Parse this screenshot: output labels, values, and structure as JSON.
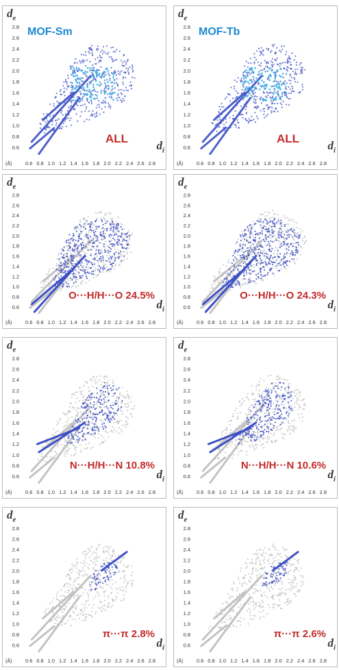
{
  "chart_data": [
    {
      "type": "scatter",
      "title": "MOF-Sm",
      "ylabel_main": "d",
      "ylabel_sub": "e",
      "xlabel_main": "d",
      "xlabel_sub": "i",
      "unit": "(Å)",
      "x_ticks": [
        "0.6",
        "0.8",
        "1.0",
        "1.2",
        "1.4",
        "1.6",
        "1.8",
        "2.0",
        "2.2",
        "2.4",
        "2.6",
        "2.8"
      ],
      "y_ticks": [
        "0.6",
        "0.8",
        "1.0",
        "1.2",
        "1.4",
        "1.6",
        "1.8",
        "2.0",
        "2.2",
        "2.4",
        "2.6",
        "2.8"
      ],
      "xlim": [
        0.5,
        2.9
      ],
      "ylim": [
        0.45,
        2.9
      ],
      "contact": "ALL",
      "percent": null,
      "highlight": "all",
      "colors": {
        "highlight": "#3d4fc4",
        "core": "#2fa8e0",
        "background": "#bdbdbd"
      }
    },
    {
      "type": "scatter",
      "title": "MOF-Tb",
      "ylabel_main": "d",
      "ylabel_sub": "e",
      "xlabel_main": "d",
      "xlabel_sub": "i",
      "unit": "(Å)",
      "x_ticks": [
        "0.6",
        "0.8",
        "1.0",
        "1.2",
        "1.4",
        "1.6",
        "1.8",
        "2.0",
        "2.2",
        "2.4",
        "2.6",
        "2.8"
      ],
      "y_ticks": [
        "0.6",
        "0.8",
        "1.0",
        "1.2",
        "1.4",
        "1.6",
        "1.8",
        "2.0",
        "2.2",
        "2.4",
        "2.6",
        "2.8"
      ],
      "xlim": [
        0.5,
        2.9
      ],
      "ylim": [
        0.45,
        2.9
      ],
      "contact": "ALL",
      "percent": null,
      "highlight": "all",
      "colors": {
        "highlight": "#3d4fc4",
        "core": "#2fa8e0",
        "background": "#bdbdbd"
      }
    },
    {
      "type": "scatter",
      "title": "",
      "ylabel_main": "d",
      "ylabel_sub": "e",
      "xlabel_main": "d",
      "xlabel_sub": "i",
      "unit": "(Å)",
      "x_ticks": [
        "0.6",
        "0.8",
        "1.0",
        "1.2",
        "1.4",
        "1.6",
        "1.8",
        "2.0",
        "2.2",
        "2.4",
        "2.6",
        "2.8"
      ],
      "y_ticks": [
        "0.6",
        "0.8",
        "1.0",
        "1.2",
        "1.4",
        "1.6",
        "1.8",
        "2.0",
        "2.2",
        "2.4",
        "2.6",
        "2.8"
      ],
      "xlim": [
        0.5,
        2.9
      ],
      "ylim": [
        0.45,
        2.9
      ],
      "contact": "O···H/H···O",
      "percent": "24.5%",
      "highlight": "oh",
      "colors": {
        "highlight": "#3d4fc4",
        "core": "#2fa8e0",
        "background": "#bdbdbd"
      }
    },
    {
      "type": "scatter",
      "title": "",
      "ylabel_main": "d",
      "ylabel_sub": "e",
      "xlabel_main": "d",
      "xlabel_sub": "i",
      "unit": "(Å)",
      "x_ticks": [
        "0.6",
        "0.8",
        "1.0",
        "1.2",
        "1.4",
        "1.6",
        "1.8",
        "2.0",
        "2.2",
        "2.4",
        "2.6",
        "2.8"
      ],
      "y_ticks": [
        "0.6",
        "0.8",
        "1.0",
        "1.2",
        "1.4",
        "1.6",
        "1.8",
        "2.0",
        "2.2",
        "2.4",
        "2.6",
        "2.8"
      ],
      "xlim": [
        0.5,
        2.9
      ],
      "ylim": [
        0.45,
        2.9
      ],
      "contact": "O···H/H···O",
      "percent": "24.3%",
      "highlight": "oh",
      "colors": {
        "highlight": "#3d4fc4",
        "core": "#2fa8e0",
        "background": "#bdbdbd"
      }
    },
    {
      "type": "scatter",
      "title": "",
      "ylabel_main": "d",
      "ylabel_sub": "e",
      "xlabel_main": "d",
      "xlabel_sub": "i",
      "unit": "(Å)",
      "x_ticks": [
        "0.6",
        "0.8",
        "1.0",
        "1.2",
        "1.4",
        "1.6",
        "1.8",
        "2.0",
        "2.2",
        "2.4",
        "2.6",
        "2.8"
      ],
      "y_ticks": [
        "0.6",
        "0.8",
        "1.0",
        "1.2",
        "1.4",
        "1.6",
        "1.8",
        "2.0",
        "2.2",
        "2.4",
        "2.6",
        "2.8"
      ],
      "xlim": [
        0.5,
        2.9
      ],
      "ylim": [
        0.45,
        2.9
      ],
      "contact": "N···H/H···N",
      "percent": "10.8%",
      "highlight": "nh",
      "colors": {
        "highlight": "#3d4fc4",
        "core": "#2fa8e0",
        "background": "#bdbdbd"
      }
    },
    {
      "type": "scatter",
      "title": "",
      "ylabel_main": "d",
      "ylabel_sub": "e",
      "xlabel_main": "d",
      "xlabel_sub": "i",
      "unit": "(Å)",
      "x_ticks": [
        "0.6",
        "0.8",
        "1.0",
        "1.2",
        "1.4",
        "1.6",
        "1.8",
        "2.0",
        "2.2",
        "2.4",
        "2.6",
        "2.8"
      ],
      "y_ticks": [
        "0.6",
        "0.8",
        "1.0",
        "1.2",
        "1.4",
        "1.6",
        "1.8",
        "2.0",
        "2.2",
        "2.4",
        "2.6",
        "2.8"
      ],
      "xlim": [
        0.5,
        2.9
      ],
      "ylim": [
        0.45,
        2.9
      ],
      "contact": "N···H/H···N",
      "percent": "10.6%",
      "highlight": "nh",
      "colors": {
        "highlight": "#3d4fc4",
        "core": "#2fa8e0",
        "background": "#bdbdbd"
      }
    },
    {
      "type": "scatter",
      "title": "",
      "ylabel_main": "d",
      "ylabel_sub": "e",
      "xlabel_main": "d",
      "xlabel_sub": "i",
      "unit": "(Å)",
      "x_ticks": [
        "0.6",
        "0.8",
        "1.0",
        "1.2",
        "1.4",
        "1.6",
        "1.8",
        "2.0",
        "2.2",
        "2.4",
        "2.6",
        "2.8"
      ],
      "y_ticks": [
        "0.6",
        "0.8",
        "1.0",
        "1.2",
        "1.4",
        "1.6",
        "1.8",
        "2.0",
        "2.2",
        "2.4",
        "2.6",
        "2.8"
      ],
      "xlim": [
        0.5,
        2.9
      ],
      "ylim": [
        0.45,
        2.9
      ],
      "contact": "π···π",
      "percent": "2.8%",
      "highlight": "pp",
      "colors": {
        "highlight": "#3d4fc4",
        "core": "#2fa8e0",
        "background": "#bdbdbd"
      }
    },
    {
      "type": "scatter",
      "title": "",
      "ylabel_main": "d",
      "ylabel_sub": "e",
      "xlabel_main": "d",
      "xlabel_sub": "i",
      "unit": "(Å)",
      "x_ticks": [
        "0.6",
        "0.8",
        "1.0",
        "1.2",
        "1.4",
        "1.6",
        "1.8",
        "2.0",
        "2.2",
        "2.4",
        "2.6",
        "2.8"
      ],
      "y_ticks": [
        "0.6",
        "0.8",
        "1.0",
        "1.2",
        "1.4",
        "1.6",
        "1.8",
        "2.0",
        "2.2",
        "2.4",
        "2.6",
        "2.8"
      ],
      "xlim": [
        0.5,
        2.9
      ],
      "ylim": [
        0.45,
        2.9
      ],
      "contact": "π···π",
      "percent": "2.6%",
      "highlight": "pp",
      "colors": {
        "highlight": "#3d4fc4",
        "core": "#2fa8e0",
        "background": "#bdbdbd"
      }
    }
  ]
}
